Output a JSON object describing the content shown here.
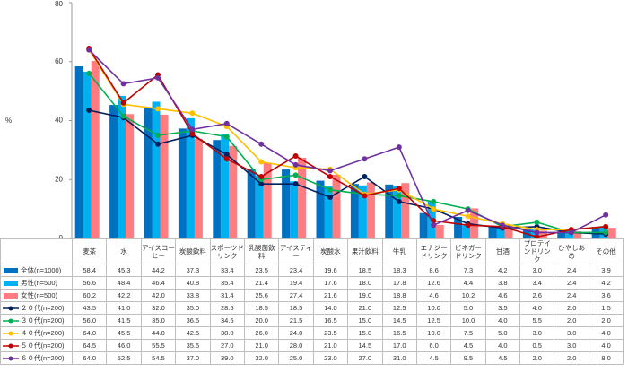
{
  "chart_data": {
    "type": "combo",
    "y_label": "%",
    "ylim": [
      0,
      80
    ],
    "yticks": [
      0,
      20,
      40,
      60,
      80
    ],
    "grid": false,
    "categories": [
      "麦茶",
      "水",
      "アイスコーヒー",
      "炭酸飲料",
      "スポーツドリンク",
      "乳酸菌飲料",
      "アイスティー",
      "炭酸水",
      "果汁飲料",
      "牛乳",
      "エナジードリンク",
      "ビネガードリンク",
      "甘酒",
      "プロテインドリンク",
      "ひやしあめ",
      "その他"
    ],
    "series": [
      {
        "name": "全体(n=1000)",
        "type": "bar",
        "color": "#0070c0",
        "values": [
          58.4,
          45.3,
          44.2,
          37.3,
          33.4,
          23.5,
          23.4,
          19.6,
          18.5,
          18.3,
          8.6,
          7.3,
          4.2,
          3.0,
          2.4,
          3.9
        ],
        "value_labels": [
          "58.4",
          "45.3",
          "44.2",
          "37.3",
          "33.4",
          "23.5",
          "23.4",
          "19.6",
          "18.5",
          "18.3",
          "8.6",
          "7.3",
          "4.2",
          "3.0",
          "2.4",
          "3.9"
        ]
      },
      {
        "name": "男性(n=500)",
        "type": "bar",
        "color": "#00b0f0",
        "values": [
          56.6,
          48.4,
          46.4,
          40.8,
          35.4,
          21.4,
          19.4,
          17.6,
          18.0,
          17.8,
          12.6,
          4.4,
          3.8,
          3.4,
          2.4,
          4.2
        ],
        "value_labels": [
          "56.6",
          "48.4",
          "46.4",
          "40.8",
          "35.4",
          "21.4",
          "19.4",
          "17.6",
          "18.0",
          "17.8",
          "12.6",
          "4.4",
          "3.8",
          "3.4",
          "2.4",
          "4.2"
        ]
      },
      {
        "name": "女性(n=500)",
        "type": "bar",
        "color": "#ff7c80",
        "values": [
          60.2,
          42.2,
          42.0,
          33.8,
          31.4,
          25.6,
          27.4,
          21.6,
          19.0,
          18.8,
          4.6,
          10.2,
          4.6,
          2.6,
          2.4,
          3.6
        ],
        "value_labels": [
          "60.2",
          "42.2",
          "42.0",
          "33.8",
          "31.4",
          "25.6",
          "27.4",
          "21.6",
          "19.0",
          "18.8",
          "4.6",
          "10.2",
          "4.6",
          "2.6",
          "2.4",
          "3.6"
        ]
      },
      {
        "name": "２０代(n=200)",
        "type": "line",
        "color": "#002060",
        "values": [
          43.5,
          41.0,
          32.0,
          35.0,
          28.5,
          18.5,
          18.5,
          14.0,
          21.0,
          12.5,
          10.0,
          5.0,
          3.5,
          4.0,
          2.0,
          1.5
        ],
        "value_labels": [
          "43.5",
          "41.0",
          "32.0",
          "35.0",
          "28.5",
          "18.5",
          "18.5",
          "14.0",
          "21.0",
          "12.5",
          "10.0",
          "5.0",
          "3.5",
          "4.0",
          "2.0",
          "1.5"
        ]
      },
      {
        "name": "３０代(n=200)",
        "type": "line",
        "color": "#00b050",
        "values": [
          56.0,
          41.5,
          35.0,
          36.5,
          34.5,
          20.0,
          21.5,
          16.5,
          15.0,
          14.5,
          12.5,
          10.0,
          4.0,
          5.5,
          2.0,
          2.0
        ],
        "value_labels": [
          "56.0",
          "41.5",
          "35.0",
          "36.5",
          "34.5",
          "20.0",
          "21.5",
          "16.5",
          "15.0",
          "14.5",
          "12.5",
          "10.0",
          "4.0",
          "5.5",
          "2.0",
          "2.0"
        ]
      },
      {
        "name": "４０代(n=200)",
        "type": "line",
        "color": "#ffc000",
        "values": [
          64.0,
          45.5,
          44.0,
          42.5,
          38.0,
          26.0,
          24.0,
          23.5,
          15.0,
          16.5,
          10.0,
          7.5,
          5.0,
          3.0,
          3.0,
          4.0
        ],
        "value_labels": [
          "64.0",
          "45.5",
          "44.0",
          "42.5",
          "38.0",
          "26.0",
          "24.0",
          "23.5",
          "15.0",
          "16.5",
          "10.0",
          "7.5",
          "5.0",
          "3.0",
          "3.0",
          "4.0"
        ]
      },
      {
        "name": "５０代(n=200)",
        "type": "line",
        "color": "#c00000",
        "values": [
          64.5,
          46.0,
          55.5,
          35.5,
          27.0,
          21.0,
          28.0,
          21.0,
          14.5,
          17.0,
          6.0,
          4.5,
          4.0,
          0.5,
          3.0,
          4.0
        ],
        "value_labels": [
          "64.5",
          "46.0",
          "55.5",
          "35.5",
          "27.0",
          "21.0",
          "28.0",
          "21.0",
          "14.5",
          "17.0",
          "6.0",
          "4.5",
          "4.0",
          "0.5",
          "3.0",
          "4.0"
        ]
      },
      {
        "name": "６０代(n=200)",
        "type": "line",
        "color": "#7030a0",
        "values": [
          64.0,
          52.5,
          54.5,
          37.0,
          39.0,
          32.0,
          25.0,
          23.0,
          27.0,
          31.0,
          4.5,
          9.5,
          4.5,
          2.0,
          2.0,
          8.0
        ],
        "value_labels": [
          "64.0",
          "52.5",
          "54.5",
          "37.0",
          "39.0",
          "32.0",
          "25.0",
          "23.0",
          "27.0",
          "31.0",
          "4.5",
          "9.5",
          "4.5",
          "2.0",
          "2.0",
          "8.0"
        ]
      }
    ]
  }
}
